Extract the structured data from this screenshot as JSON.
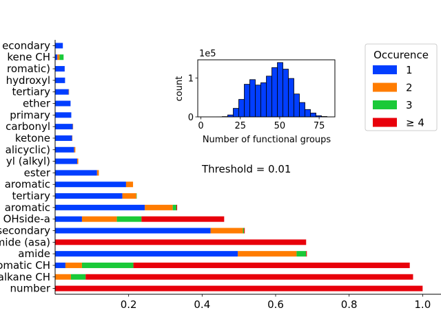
{
  "chart_data": [
    {
      "type": "bar",
      "orientation": "horizontal",
      "stacked": true,
      "categories": [
        "number",
        "alkane CH",
        "aromatic CH",
        "amide",
        "amide (asa)",
        "secondary",
        "OHside-a",
        "aromatic",
        "tertiary",
        "aromatic",
        "ester",
        "yl (alkyl)",
        "alicyclic)",
        "ketone",
        "carbonyl",
        "primary",
        "ether",
        "tertiary",
        "hydroxyl",
        "romatic)",
        "kene CH",
        "econdary"
      ],
      "series": [
        {
          "name": "1",
          "color": "#023eff",
          "values": [
            0,
            0,
            0.028,
            0.497,
            0,
            0.423,
            0.073,
            0.244,
            0.183,
            0.193,
            0.114,
            0.06,
            0.052,
            0.046,
            0.048,
            0.044,
            0.042,
            0.037,
            0.027,
            0.026,
            0.006,
            0.021
          ]
        },
        {
          "name": "2",
          "color": "#ff7c00",
          "values": [
            0,
            0.043,
            0.045,
            0.16,
            0,
            0.088,
            0.095,
            0.076,
            0.038,
            0.019,
            0.005,
            0.003,
            0.003,
            0.001,
            0.001,
            0,
            0,
            0.001,
            0,
            0,
            0.006,
            0
          ]
        },
        {
          "name": "3",
          "color": "#1ac938",
          "values": [
            0,
            0.04,
            0.14,
            0.026,
            0,
            0.003,
            0.067,
            0.01,
            0.001,
            0,
            0,
            0,
            0,
            0,
            0,
            0,
            0,
            0,
            0,
            0,
            0.011,
            0
          ]
        },
        {
          "name": "≥ 4",
          "color": "#e8000b",
          "values": [
            1.0,
            0.891,
            0.752,
            0.002,
            0.683,
            0.002,
            0.225,
            0.002,
            0,
            0,
            0,
            0,
            0,
            0,
            0,
            0,
            0,
            0,
            0,
            0,
            0,
            0
          ]
        }
      ],
      "xlim": [
        0,
        1.05
      ],
      "xticks": [
        "0.2",
        "0.4",
        "0.6",
        "0.8",
        "1.0"
      ],
      "legend": {
        "title": "Occurence",
        "position": "top-right"
      },
      "annotation": "Threshold = 0.01"
    },
    {
      "type": "bar",
      "subtype": "histogram",
      "position": "inset",
      "color": "#023eff",
      "bin_width": 3.5,
      "x": [
        10,
        13.5,
        17,
        20.5,
        24,
        27.5,
        31,
        34.5,
        38,
        41.5,
        45,
        48.5,
        52,
        55.5,
        59,
        62.5,
        66,
        69.5,
        73,
        76.5
      ],
      "values": [
        0.002,
        0.008,
        0.05,
        0.22,
        0.45,
        0.84,
        0.96,
        0.82,
        0.88,
        1.05,
        1.27,
        1.4,
        1.23,
        0.99,
        0.59,
        0.37,
        0.19,
        0.1,
        0.03,
        0.01
      ],
      "xlabel": "Number of functional groups",
      "ylabel": "count",
      "offset_text": "1e5",
      "xlim": [
        -2,
        85
      ],
      "ylim": [
        0,
        1.47
      ],
      "xticks": [
        "0",
        "25",
        "50",
        "75"
      ],
      "yticks": [
        "0",
        "1"
      ]
    }
  ]
}
